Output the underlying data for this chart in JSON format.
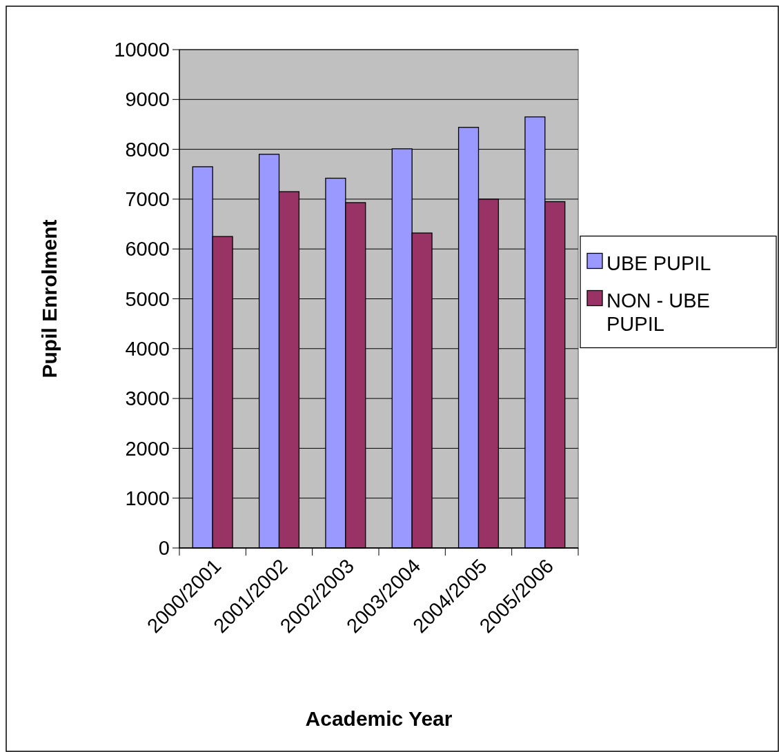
{
  "chart_data": {
    "type": "bar",
    "xlabel": "Academic Year",
    "ylabel": "Pupil Enrolment",
    "categories": [
      "2000/2001",
      "2001/2002",
      "2002/2003",
      "2003/2004",
      "2004/2005",
      "2005/2006"
    ],
    "series": [
      {
        "name": "UBE PUPIL",
        "color": "#9999ff",
        "values": [
          7650,
          7900,
          7420,
          8010,
          8440,
          8650
        ]
      },
      {
        "name": "NON - UBE PUPIL",
        "color": "#993366",
        "values": [
          6250,
          7150,
          6930,
          6320,
          7000,
          6950
        ]
      }
    ],
    "ylim": [
      0,
      10000
    ],
    "yticks": [
      0,
      1000,
      2000,
      3000,
      4000,
      5000,
      6000,
      7000,
      8000,
      9000,
      10000
    ],
    "grid": "y",
    "legend": "right"
  }
}
